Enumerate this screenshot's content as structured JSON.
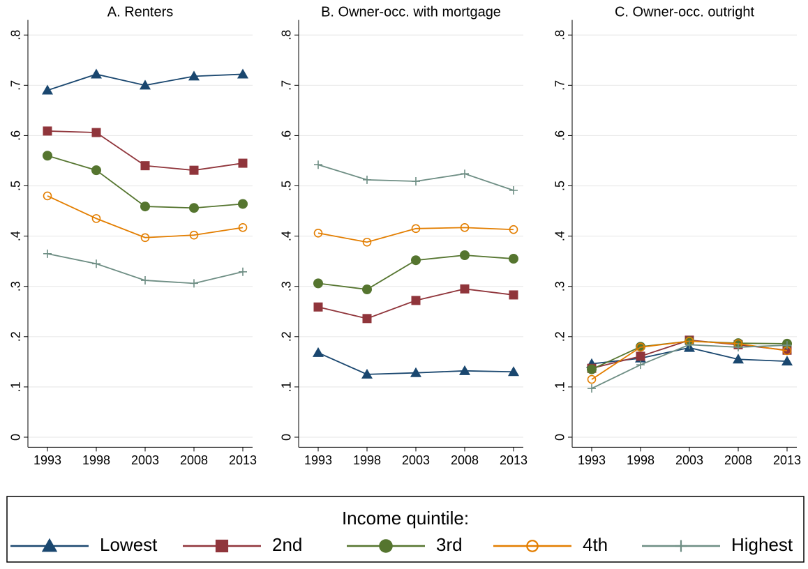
{
  "chart_data": [
    {
      "type": "line",
      "title": "A. Renters",
      "x": [
        1993,
        1998,
        2003,
        2008,
        2013
      ],
      "xlim": [
        1991,
        2014
      ],
      "xticks": [
        1993,
        1998,
        2003,
        2008,
        2013
      ],
      "ylim": [
        -0.02,
        0.83
      ],
      "yticks": [
        0,
        {
          "value": 0.1,
          "label": ".1"
        },
        {
          "value": 0.2,
          "label": ".2"
        },
        {
          "value": 0.3,
          "label": ".3"
        },
        {
          "value": 0.4,
          "label": ".4"
        },
        {
          "value": 0.5,
          "label": ".5"
        },
        {
          "value": 0.6,
          "label": ".6"
        },
        {
          "value": 0.7,
          "label": ".7"
        },
        {
          "value": 0.8,
          "label": ".8"
        }
      ],
      "grid": true,
      "series": [
        {
          "name": "Lowest",
          "color": "#1a476f",
          "marker": "triangle",
          "values": [
            0.69,
            0.722,
            0.7,
            0.718,
            0.722
          ]
        },
        {
          "name": "2nd",
          "color": "#90353b",
          "marker": "square",
          "values": [
            0.609,
            0.606,
            0.54,
            0.531,
            0.545
          ]
        },
        {
          "name": "3rd",
          "color": "#55752f",
          "marker": "circle",
          "values": [
            0.56,
            0.531,
            0.459,
            0.456,
            0.464
          ]
        },
        {
          "name": "4th",
          "color": "#e37e00",
          "marker": "hollow-circle",
          "values": [
            0.48,
            0.435,
            0.397,
            0.402,
            0.417
          ]
        },
        {
          "name": "Highest",
          "color": "#6e8e84",
          "marker": "plus",
          "values": [
            0.365,
            0.345,
            0.312,
            0.306,
            0.329
          ]
        }
      ]
    },
    {
      "type": "line",
      "title": "B. Owner-occ. with mortgage",
      "x": [
        1993,
        1998,
        2003,
        2008,
        2013
      ],
      "xlim": [
        1991,
        2014
      ],
      "xticks": [
        1993,
        1998,
        2003,
        2008,
        2013
      ],
      "ylim": [
        -0.02,
        0.83
      ],
      "yticks": [
        0,
        {
          "value": 0.1,
          "label": ".1"
        },
        {
          "value": 0.2,
          "label": ".2"
        },
        {
          "value": 0.3,
          "label": ".3"
        },
        {
          "value": 0.4,
          "label": ".4"
        },
        {
          "value": 0.5,
          "label": ".5"
        },
        {
          "value": 0.6,
          "label": ".6"
        },
        {
          "value": 0.7,
          "label": ".7"
        },
        {
          "value": 0.8,
          "label": ".8"
        }
      ],
      "grid": true,
      "series": [
        {
          "name": "Lowest",
          "color": "#1a476f",
          "marker": "triangle",
          "values": [
            0.168,
            0.125,
            0.128,
            0.132,
            0.13
          ]
        },
        {
          "name": "2nd",
          "color": "#90353b",
          "marker": "square",
          "values": [
            0.259,
            0.236,
            0.272,
            0.295,
            0.283
          ]
        },
        {
          "name": "3rd",
          "color": "#55752f",
          "marker": "circle",
          "values": [
            0.306,
            0.294,
            0.352,
            0.362,
            0.355
          ]
        },
        {
          "name": "4th",
          "color": "#e37e00",
          "marker": "hollow-circle",
          "values": [
            0.406,
            0.388,
            0.415,
            0.417,
            0.413
          ]
        },
        {
          "name": "Highest",
          "color": "#6e8e84",
          "marker": "plus",
          "values": [
            0.542,
            0.512,
            0.509,
            0.524,
            0.491
          ]
        }
      ]
    },
    {
      "type": "line",
      "title": "C. Owner-occ. outright",
      "x": [
        1993,
        1998,
        2003,
        2008,
        2013
      ],
      "xlim": [
        1991,
        2014
      ],
      "xticks": [
        1993,
        1998,
        2003,
        2008,
        2013
      ],
      "ylim": [
        -0.02,
        0.83
      ],
      "yticks": [
        0,
        {
          "value": 0.1,
          "label": ".1"
        },
        {
          "value": 0.2,
          "label": ".2"
        },
        {
          "value": 0.3,
          "label": ".3"
        },
        {
          "value": 0.4,
          "label": ".4"
        },
        {
          "value": 0.5,
          "label": ".5"
        },
        {
          "value": 0.6,
          "label": ".6"
        },
        {
          "value": 0.7,
          "label": ".7"
        },
        {
          "value": 0.8,
          "label": ".8"
        }
      ],
      "grid": true,
      "series": [
        {
          "name": "Lowest",
          "color": "#1a476f",
          "marker": "triangle",
          "values": [
            0.146,
            0.157,
            0.178,
            0.155,
            0.151
          ]
        },
        {
          "name": "2nd",
          "color": "#90353b",
          "marker": "square",
          "values": [
            0.137,
            0.161,
            0.193,
            0.184,
            0.173
          ]
        },
        {
          "name": "3rd",
          "color": "#55752f",
          "marker": "circle",
          "values": [
            0.135,
            0.18,
            0.191,
            0.187,
            0.186
          ]
        },
        {
          "name": "4th",
          "color": "#e37e00",
          "marker": "hollow-circle",
          "values": [
            0.115,
            0.179,
            0.191,
            0.186,
            0.172
          ]
        },
        {
          "name": "Highest",
          "color": "#6e8e84",
          "marker": "plus",
          "values": [
            0.097,
            0.144,
            0.184,
            0.179,
            0.183
          ]
        }
      ]
    }
  ],
  "legend": {
    "title": "Income quintile:"
  }
}
